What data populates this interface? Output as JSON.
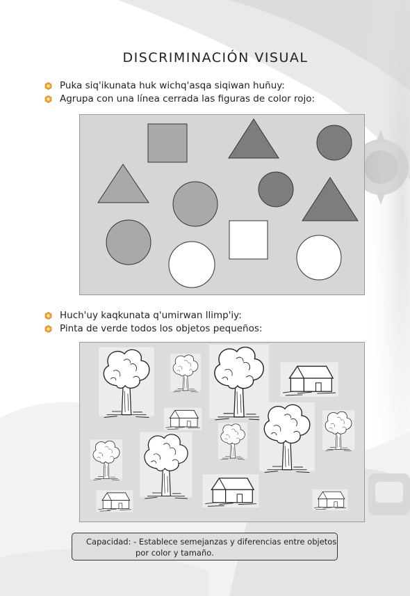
{
  "page": {
    "title": "DISCRIMINACIÓN VISUAL"
  },
  "section1": {
    "instruction_quechua": "Puka siq'ikunata huk wichq'asqa  siqiwan huñuy:",
    "instruction_spanish": "Agrupa con una línea cerrada las figuras de color rojo:"
  },
  "section2": {
    "instruction_quechua": "Huch'uy kaqkunata q'umirwan llimp'iy:",
    "instruction_spanish": "Pinta de verde todos los objetos pequeños:"
  },
  "capacity": {
    "label": "Capacidad:",
    "line1": "- Establece semejanzas y diferencias entre objetos",
    "line2": "por color y tamaño."
  },
  "icons": {
    "bullet": "flower-bullet-icon"
  },
  "colors": {
    "shape_mid_gray": "#a9a9a9",
    "shape_dark_gray": "#7d7d7d",
    "shape_white": "#ffffff",
    "panel_gray": "#d6d6d6"
  }
}
